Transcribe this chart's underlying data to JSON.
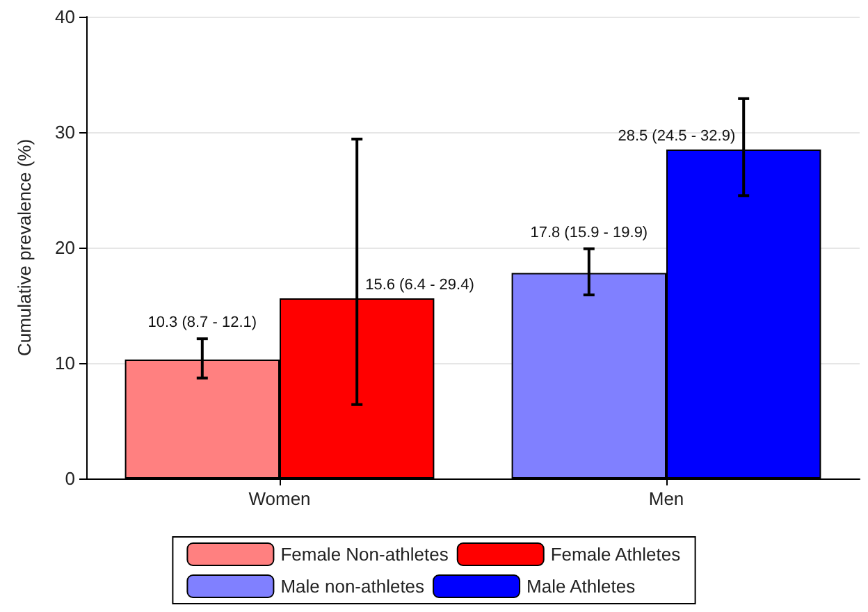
{
  "chart_data": {
    "type": "bar",
    "ylabel": "Cumulative prevalence (%)",
    "categories": [
      "Women",
      "Men"
    ],
    "series": [
      {
        "name": "Female Non-athletes",
        "color": "#ff8080",
        "values": [
          10.3,
          null
        ],
        "errors": [
          [
            8.7,
            12.1
          ],
          null
        ],
        "value_labels": [
          "10.3 (8.7 - 12.1)",
          null
        ]
      },
      {
        "name": "Female Athletes",
        "color": "#ff0000",
        "values": [
          15.6,
          null
        ],
        "errors": [
          [
            6.4,
            29.4
          ],
          null
        ],
        "value_labels": [
          "15.6 (6.4 - 29.4)",
          null
        ]
      },
      {
        "name": "Male non-athletes",
        "color": "#8080ff",
        "values": [
          null,
          17.8
        ],
        "errors": [
          null,
          [
            15.9,
            19.9
          ]
        ],
        "value_labels": [
          null,
          "17.8 (15.9 - 19.9)"
        ]
      },
      {
        "name": "Male Athletes",
        "color": "#0000ff",
        "values": [
          null,
          28.5
        ],
        "errors": [
          null,
          [
            24.5,
            32.9
          ]
        ],
        "value_labels": [
          null,
          "28.5 (24.5 - 32.9)"
        ]
      }
    ],
    "ylim": [
      0,
      40
    ],
    "yticks": [
      0,
      10,
      20,
      30,
      40
    ],
    "grid": "y",
    "legend": "bottom"
  }
}
